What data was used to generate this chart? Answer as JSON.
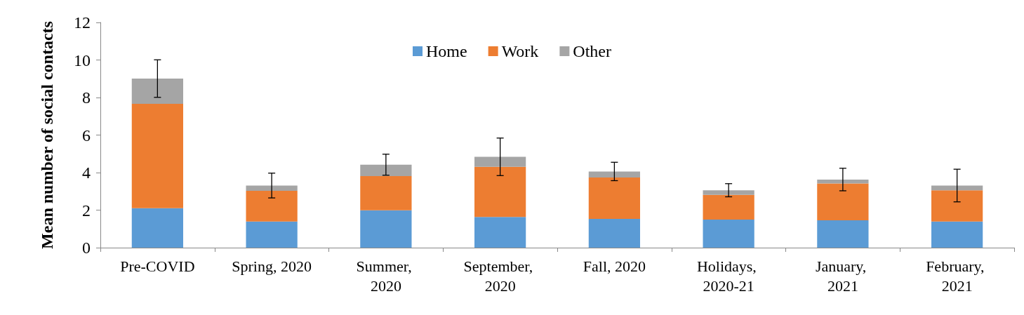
{
  "chart_data": {
    "type": "bar",
    "stacked": true,
    "ylabel": "Mean number of social contacts",
    "categories": [
      "Pre-COVID",
      "Spring, 2020",
      "Summer, 2020",
      "September, 2020",
      "Fall, 2020",
      "Holidays, 2020-21",
      "January, 2021",
      "February, 2021"
    ],
    "series": [
      {
        "name": "Home",
        "color": "#5b9bd5",
        "values": [
          2.1,
          1.39,
          1.99,
          1.64,
          1.53,
          1.5,
          1.46,
          1.39
        ]
      },
      {
        "name": "Work",
        "color": "#ed7d31",
        "values": [
          5.56,
          1.64,
          1.82,
          2.67,
          2.21,
          1.31,
          1.96,
          1.67
        ]
      },
      {
        "name": "Other",
        "color": "#a5a5a5",
        "values": [
          1.35,
          0.28,
          0.61,
          0.53,
          0.32,
          0.25,
          0.21,
          0.25
        ],
        "errors": [
          1.0,
          0.66,
          0.56,
          1.0,
          0.49,
          0.35,
          0.6,
          0.87
        ]
      }
    ],
    "ylim": [
      0,
      12
    ],
    "yticks": [
      0,
      2,
      4,
      6,
      8,
      10,
      12
    ],
    "grid": false,
    "legend": "top"
  }
}
